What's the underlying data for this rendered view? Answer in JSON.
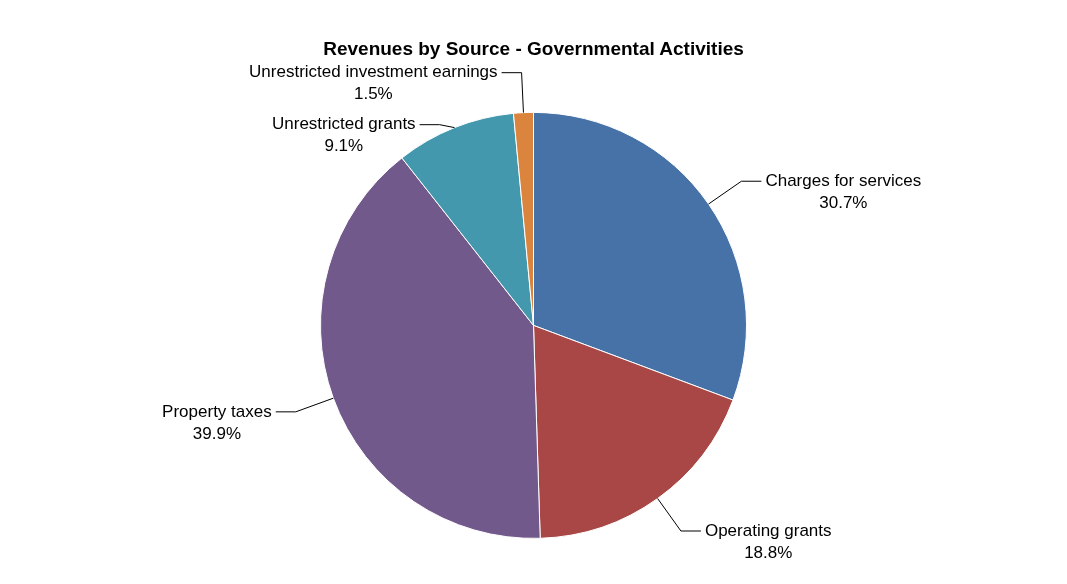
{
  "chart_data": {
    "type": "pie",
    "title": "Revenues by Source - Governmental Activities",
    "categories": [
      "Charges for services",
      "Operating grants",
      "Property taxes",
      "Unrestricted grants",
      "Unrestricted investment earnings"
    ],
    "values": [
      30.7,
      18.8,
      39.9,
      9.1,
      1.5
    ],
    "value_labels": [
      "30.7%",
      "18.8%",
      "39.9%",
      "9.1%",
      "1.5%"
    ],
    "colors": [
      "#4672a8",
      "#a84745",
      "#72598c",
      "#4398ae",
      "#db843d"
    ],
    "legend": false
  }
}
